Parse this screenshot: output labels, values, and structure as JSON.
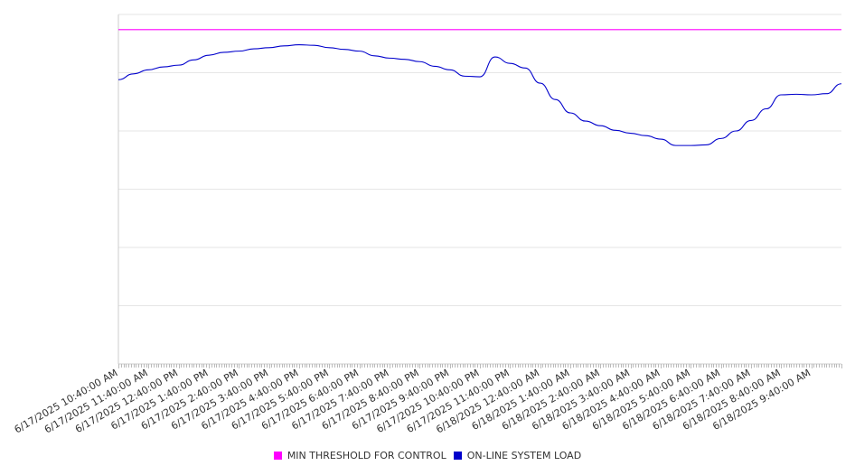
{
  "chart_data": {
    "type": "line",
    "title": "",
    "xlabel": "",
    "ylabel": "",
    "x_range": [
      "6/17/2025 10:40:00 AM",
      "6/18/2025 10:40:00 AM"
    ],
    "y_range": [
      0,
      6
    ],
    "y_grid_lines": [
      1,
      2,
      3,
      4,
      5
    ],
    "grid": true,
    "legend_position": "bottom-center",
    "x_tick_labels": [
      "6/17/2025 10:40:00 AM",
      "6/17/2025 11:40:00 AM",
      "6/17/2025 12:40:00 PM",
      "6/17/2025 1:40:00 PM",
      "6/17/2025 2:40:00 PM",
      "6/17/2025 3:40:00 PM",
      "6/17/2025 4:40:00 PM",
      "6/17/2025 5:40:00 PM",
      "6/17/2025 6:40:00 PM",
      "6/17/2025 7:40:00 PM",
      "6/17/2025 8:40:00 PM",
      "6/17/2025 9:40:00 PM",
      "6/17/2025 10:40:00 PM",
      "6/17/2025 11:40:00 PM",
      "6/18/2025 12:40:00 AM",
      "6/18/2025 1:40:00 AM",
      "6/18/2025 2:40:00 AM",
      "6/18/2025 3:40:00 AM",
      "6/18/2025 4:40:00 AM",
      "6/18/2025 5:40:00 AM",
      "6/18/2025 6:40:00 AM",
      "6/18/2025 7:40:00 AM",
      "6/18/2025 8:40:00 AM",
      "6/18/2025 9:40:00 AM"
    ],
    "series": [
      {
        "name": "MIN THRESHOLD FOR CONTROL",
        "color": "#ff00ff",
        "x": [
          "6/17/2025 10:40:00 AM",
          "6/18/2025 10:40:00 AM"
        ],
        "y": [
          5.74,
          5.74
        ]
      },
      {
        "name": "ON-LINE SYSTEM LOAD",
        "color": "#0000cc",
        "x": [
          "6/17/2025 10:40:00 AM",
          "6/17/2025 11:10:00 AM",
          "6/17/2025 11:40:00 AM",
          "6/17/2025 12:10:00 PM",
          "6/17/2025 12:40:00 PM",
          "6/17/2025 1:10:00 PM",
          "6/17/2025 1:40:00 PM",
          "6/17/2025 2:10:00 PM",
          "6/17/2025 2:40:00 PM",
          "6/17/2025 3:10:00 PM",
          "6/17/2025 3:40:00 PM",
          "6/17/2025 4:10:00 PM",
          "6/17/2025 4:40:00 PM",
          "6/17/2025 5:10:00 PM",
          "6/17/2025 5:40:00 PM",
          "6/17/2025 6:10:00 PM",
          "6/17/2025 6:40:00 PM",
          "6/17/2025 7:10:00 PM",
          "6/17/2025 7:40:00 PM",
          "6/17/2025 8:10:00 PM",
          "6/17/2025 8:40:00 PM",
          "6/17/2025 9:10:00 PM",
          "6/17/2025 9:40:00 PM",
          "6/17/2025 10:10:00 PM",
          "6/17/2025 10:40:00 PM",
          "6/17/2025 11:10:00 PM",
          "6/17/2025 11:40:00 PM",
          "6/18/2025 12:10:00 AM",
          "6/18/2025 12:40:00 AM",
          "6/18/2025 1:10:00 AM",
          "6/18/2025 1:40:00 AM",
          "6/18/2025 2:10:00 AM",
          "6/18/2025 2:40:00 AM",
          "6/18/2025 3:10:00 AM",
          "6/18/2025 3:40:00 AM",
          "6/18/2025 4:10:00 AM",
          "6/18/2025 4:40:00 AM",
          "6/18/2025 5:10:00 AM",
          "6/18/2025 5:40:00 AM",
          "6/18/2025 6:10:00 AM",
          "6/18/2025 6:40:00 AM",
          "6/18/2025 7:10:00 AM",
          "6/18/2025 7:40:00 AM",
          "6/18/2025 8:10:00 AM",
          "6/18/2025 8:40:00 AM",
          "6/18/2025 9:10:00 AM",
          "6/18/2025 9:40:00 AM",
          "6/18/2025 10:10:00 AM",
          "6/18/2025 10:40:00 AM"
        ],
        "y": [
          4.88,
          4.98,
          5.05,
          5.1,
          5.13,
          5.22,
          5.3,
          5.35,
          5.37,
          5.41,
          5.43,
          5.46,
          5.48,
          5.47,
          5.43,
          5.4,
          5.37,
          5.29,
          5.25,
          5.23,
          5.19,
          5.11,
          5.05,
          4.94,
          4.93,
          5.27,
          5.16,
          5.08,
          4.82,
          4.54,
          4.31,
          4.17,
          4.09,
          4.01,
          3.96,
          3.92,
          3.86,
          3.75,
          3.75,
          3.76,
          3.87,
          4.0,
          4.18,
          4.38,
          4.62,
          4.63,
          4.62,
          4.64,
          4.81
        ]
      }
    ]
  }
}
